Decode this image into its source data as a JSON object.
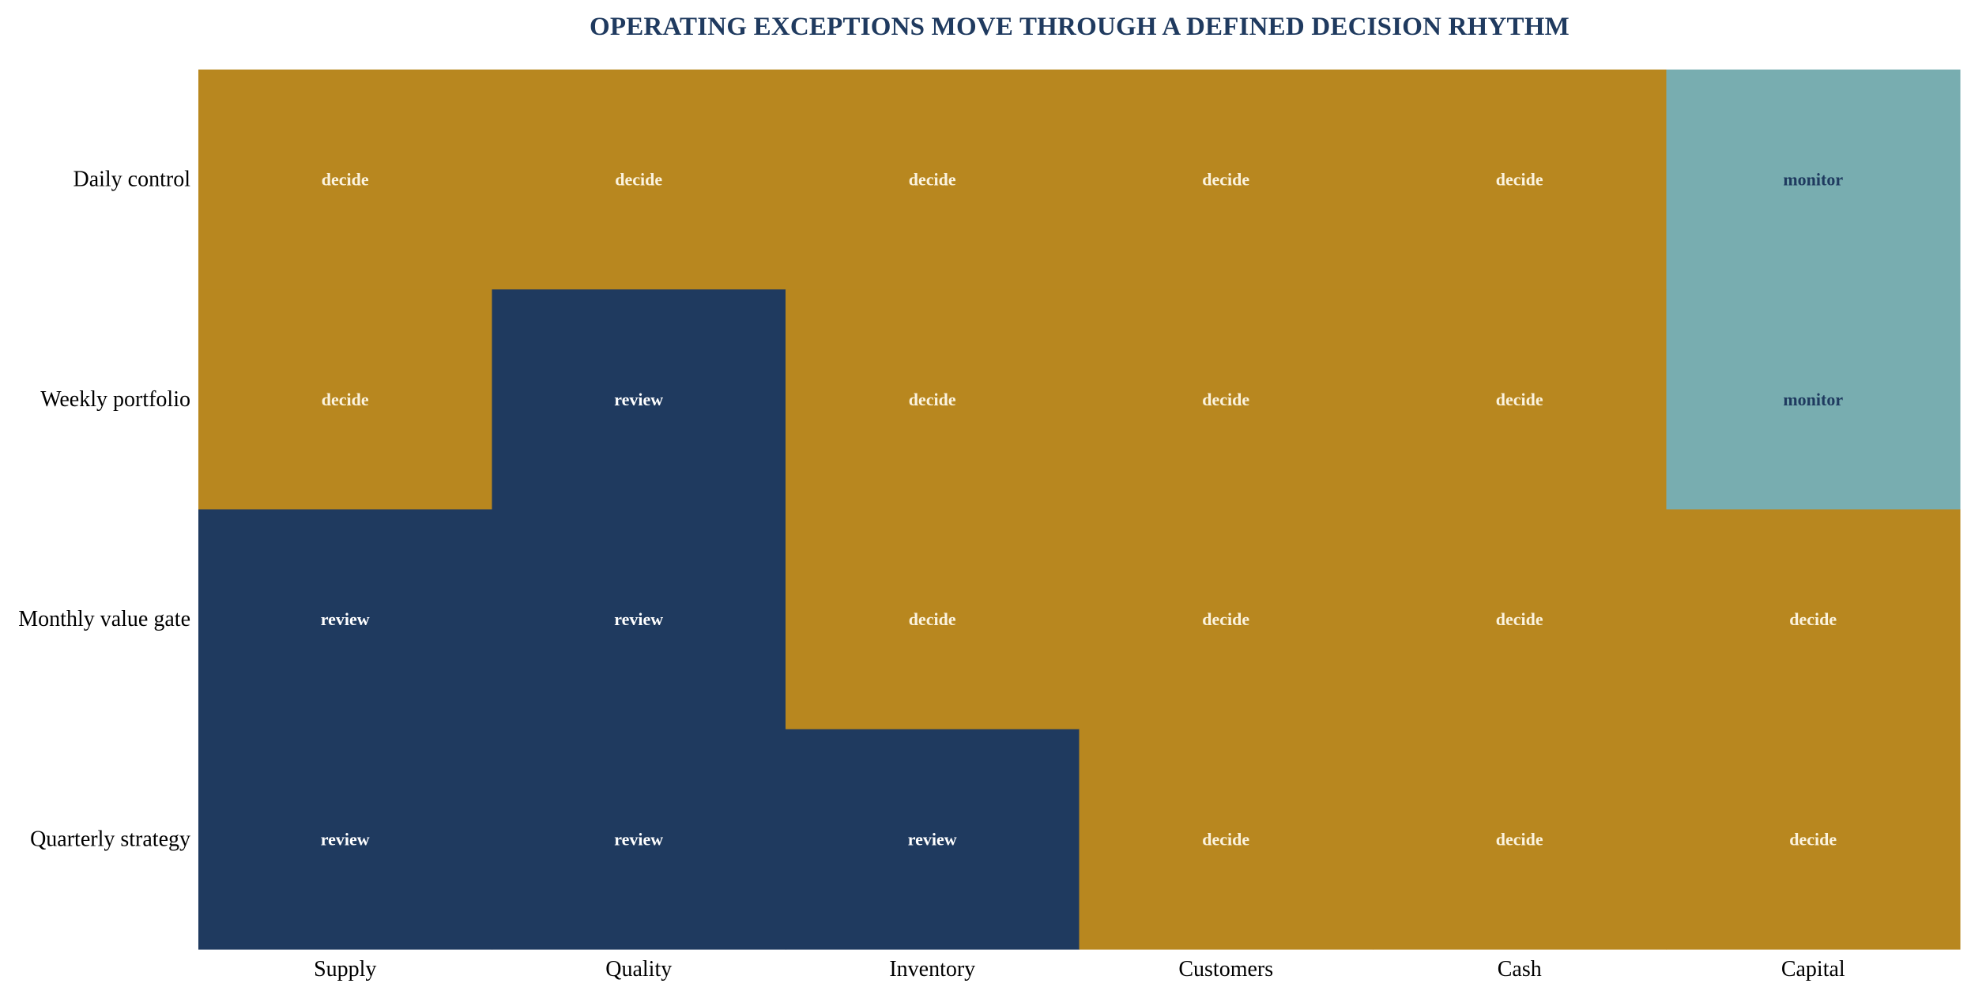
{
  "chart_data": {
    "type": "heatmap",
    "title": "OPERATING EXCEPTIONS MOVE THROUGH A DEFINED DECISION RHYTHM",
    "rows": [
      "Daily control",
      "Weekly portfolio",
      "Monthly value gate",
      "Quarterly strategy"
    ],
    "columns": [
      "Supply",
      "Quality",
      "Inventory",
      "Customers",
      "Cash",
      "Capital"
    ],
    "cells": [
      [
        "decide",
        "decide",
        "decide",
        "decide",
        "decide",
        "monitor"
      ],
      [
        "decide",
        "review",
        "decide",
        "decide",
        "decide",
        "monitor"
      ],
      [
        "review",
        "review",
        "decide",
        "decide",
        "decide",
        "decide"
      ],
      [
        "review",
        "review",
        "review",
        "decide",
        "decide",
        "decide"
      ]
    ],
    "grid": false,
    "legend": false
  },
  "colors": {
    "title": "#1f3a5f",
    "decide": "#b8871f",
    "review": "#1f3a5f",
    "monitor": "#78adb0",
    "decide_text": "#fbf3df",
    "review_text": "#ffffff",
    "monitor_text": "#1f3a5f"
  }
}
